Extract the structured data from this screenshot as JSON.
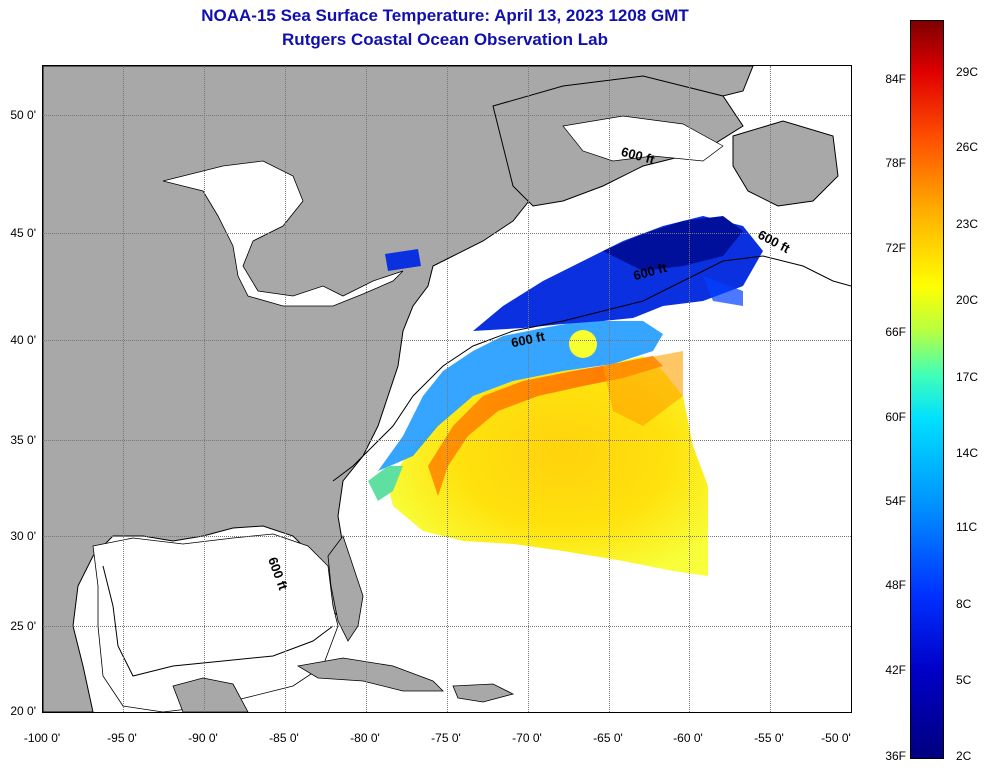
{
  "title": {
    "line1": "NOAA-15 Sea Surface Temperature:  April 13, 2023 1208 GMT",
    "line2": "Rutgers Coastal Ocean Observation Lab"
  },
  "axes": {
    "lat_labels": [
      "50 0'",
      "45 0'",
      "40 0'",
      "35 0'",
      "30 0'",
      "25 0'",
      "20 0'"
    ],
    "lon_labels": [
      "-100 0'",
      "-95 0'",
      "-90 0'",
      "-85 0'",
      "-80 0'",
      "-75 0'",
      "-70 0'",
      "-65 0'",
      "-60 0'",
      "-55 0'",
      "-50 0'"
    ]
  },
  "colorbar": {
    "fahrenheit": [
      "84F",
      "78F",
      "72F",
      "66F",
      "60F",
      "54F",
      "48F",
      "42F",
      "36F"
    ],
    "celsius": [
      "29C",
      "26C",
      "23C",
      "20C",
      "17C",
      "14C",
      "11C",
      "8C",
      "5C",
      "2C"
    ]
  },
  "contour_labels": [
    "600 ft",
    "600 ft",
    "600 ft",
    "600 ft",
    "600 ft"
  ],
  "colors": {
    "land": "#a8a8a8",
    "title": "#1010b0"
  }
}
